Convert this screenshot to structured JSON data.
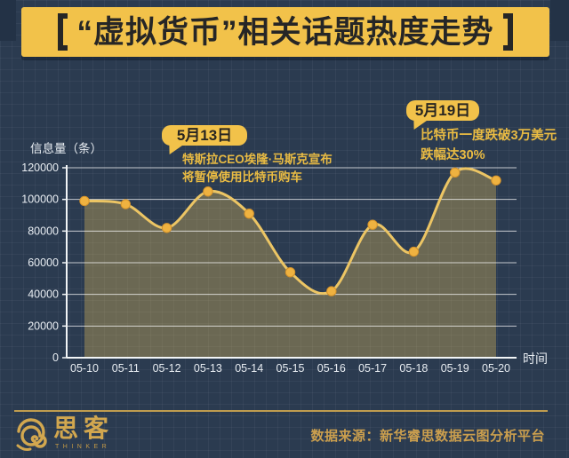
{
  "title": {
    "text": "“虚拟货币”相关话题热度走势"
  },
  "chart_data": {
    "type": "area",
    "title": "“虚拟货币”相关话题热度走势",
    "categories": [
      "05-10",
      "05-11",
      "05-12",
      "05-13",
      "05-14",
      "05-15",
      "05-16",
      "05-17",
      "05-18",
      "05-19",
      "05-20"
    ],
    "values": [
      99000,
      97000,
      82000,
      105000,
      91000,
      54000,
      42000,
      84000,
      67000,
      117000,
      112000
    ],
    "ylabel": "信息量（条）",
    "xlabel": "时间",
    "ylim": [
      0,
      120000
    ],
    "yticks": [
      0,
      20000,
      40000,
      60000,
      80000,
      100000,
      120000
    ],
    "grid": true,
    "legend": "none",
    "line_color": "#ecc564",
    "point_color": "#efb240",
    "point_stroke": "#d4922a",
    "fill_color": "rgba(240,197,92,0.33)",
    "grid_color": "rgba(255,255,255,0.72)",
    "axis_color": "#f2f5f7",
    "tick_color": "#e8edf2"
  },
  "annotations": [
    {
      "date": "5月13日",
      "line1": "特斯拉CEO埃隆·马斯克宣布",
      "line2": "将暂停使用比特币购车"
    },
    {
      "date": "5月19日",
      "line1": "比特币一度跌破3万美元",
      "line2": "跌幅达30%"
    }
  ],
  "footer": {
    "logo_text": "思客",
    "logo_subtext": "THINKER",
    "source": "数据来源：新华睿思数据云图分析平台"
  }
}
